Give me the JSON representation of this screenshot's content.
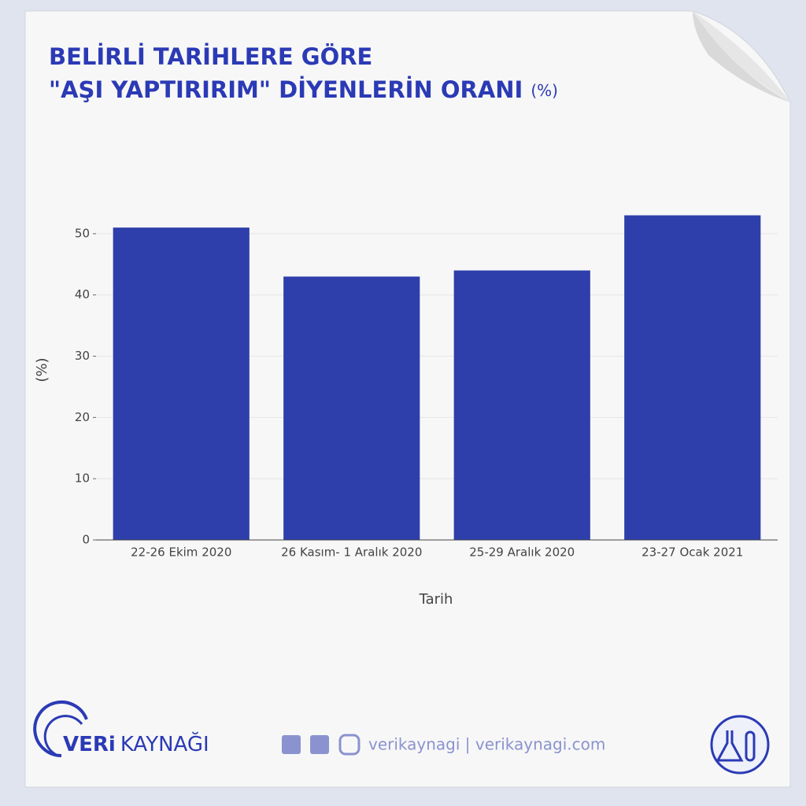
{
  "chart_data": {
    "type": "bar",
    "title": [
      "BELİRLİ TARİHLERE GÖRE",
      "\"AŞI YAPTIRIRIM\" DİYENLERİN ORANI"
    ],
    "title_unit": "(%)",
    "categories": [
      "22-26 Ekim 2020",
      "26 Kasım- 1 Aralık 2020",
      "25-29 Aralık 2020",
      "23-27 Ocak 2021"
    ],
    "values": [
      51,
      43,
      44,
      53
    ],
    "color": "#2e3fab",
    "ylim": [
      0,
      55
    ],
    "yticks": [
      0,
      10,
      20,
      30,
      40,
      50
    ],
    "grid": true,
    "y_label": "(%)",
    "x_label": "Tarih"
  },
  "footer": {
    "brand_bold": "VERi",
    "brand_light": "KAYNAĞI",
    "handle": "verikaynagi | verikaynagi.com"
  }
}
